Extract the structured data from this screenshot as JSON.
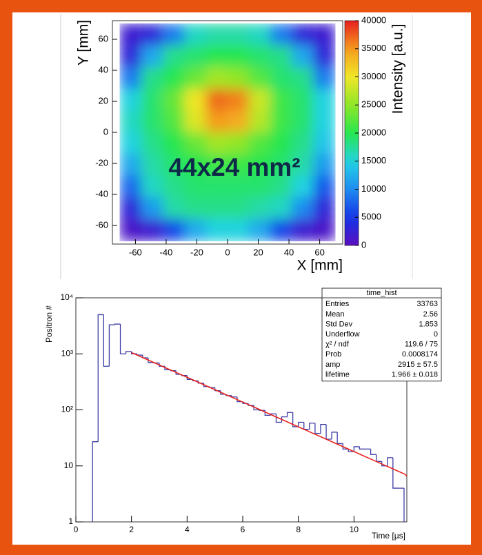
{
  "chart_data": [
    {
      "type": "heatmap",
      "xlabel": "X [mm]",
      "ylabel": "Y [mm]",
      "zlabel": "Intensity [a.u.]",
      "annotation": "44x24 mm²",
      "x": [
        -63,
        -49,
        -35,
        -21,
        -7,
        7,
        21,
        35,
        49,
        63
      ],
      "y": [
        63,
        49,
        35,
        21,
        7,
        -7,
        -21,
        -35,
        -49,
        -63
      ],
      "values": [
        [
          2000,
          3000,
          9000,
          16000,
          17000,
          17000,
          16000,
          9000,
          3000,
          2000
        ],
        [
          3000,
          12000,
          18000,
          19000,
          20000,
          20000,
          19000,
          18000,
          12000,
          3000
        ],
        [
          9000,
          18000,
          20000,
          23000,
          26000,
          25000,
          22000,
          19000,
          18000,
          9000
        ],
        [
          15000,
          19000,
          23000,
          30000,
          37000,
          36000,
          28000,
          21000,
          19000,
          15000
        ],
        [
          16000,
          19000,
          22000,
          29000,
          35000,
          34000,
          27000,
          21000,
          19000,
          15000
        ],
        [
          15000,
          18000,
          20000,
          23000,
          26000,
          25000,
          22000,
          20000,
          18000,
          14000
        ],
        [
          12000,
          17000,
          19000,
          20000,
          21000,
          21000,
          20000,
          19000,
          17000,
          11000
        ],
        [
          8000,
          16000,
          18000,
          19000,
          19000,
          19000,
          19000,
          18000,
          15000,
          7000
        ],
        [
          3000,
          11000,
          17000,
          18000,
          18000,
          18000,
          17000,
          16000,
          10000,
          3000
        ],
        [
          1000,
          2000,
          6000,
          12000,
          15000,
          15000,
          12000,
          6000,
          2000,
          1000
        ]
      ],
      "xlim": [
        -75,
        75
      ],
      "ylim": [
        -72,
        72
      ],
      "zlim": [
        0,
        40000
      ],
      "xticks": [
        -60,
        -40,
        -20,
        0,
        20,
        40,
        60
      ],
      "yticks": [
        -60,
        -40,
        -20,
        0,
        20,
        40,
        60
      ],
      "zticks": [
        0,
        5000,
        10000,
        15000,
        20000,
        25000,
        30000,
        35000,
        40000
      ]
    },
    {
      "type": "histogram",
      "xlabel": "Time [μs]",
      "ylabel": "Positron #",
      "color": "#3b3ba6",
      "log_y": true,
      "bins": [
        0.6,
        0.8,
        1.0,
        1.2,
        1.4,
        1.6,
        1.8,
        2.0,
        2.2,
        2.4,
        2.6,
        2.8,
        3.0,
        3.2,
        3.4,
        3.6,
        3.8,
        4.0,
        4.2,
        4.4,
        4.6,
        4.8,
        5.0,
        5.2,
        5.4,
        5.6,
        5.8,
        6.0,
        6.2,
        6.4,
        6.6,
        6.8,
        7.0,
        7.2,
        7.4,
        7.6,
        7.8,
        8.0,
        8.2,
        8.4,
        8.6,
        8.8,
        9.0,
        9.2,
        9.4,
        9.6,
        9.8,
        10.0,
        10.2,
        10.4,
        10.6,
        10.8,
        11.0,
        11.2,
        11.4,
        11.6,
        11.8
      ],
      "values": [
        27,
        5000,
        600,
        3300,
        3400,
        1000,
        1100,
        1002,
        950,
        850,
        700,
        690,
        600,
        520,
        500,
        430,
        410,
        350,
        330,
        300,
        260,
        250,
        220,
        190,
        180,
        170,
        140,
        130,
        120,
        100,
        98,
        80,
        85,
        60,
        75,
        90,
        50,
        60,
        45,
        58,
        38,
        55,
        30,
        40,
        25,
        20,
        18,
        22,
        20,
        20,
        16,
        12,
        10,
        14,
        4,
        4
      ],
      "fit": {
        "amp": 2915,
        "lifetime": 1.966,
        "xlim": [
          2,
          12
        ],
        "color": "#e8231e"
      },
      "xlim": [
        0,
        11.9
      ],
      "ylim": [
        1,
        10000
      ],
      "xticks": [
        0,
        2,
        4,
        6,
        8,
        10
      ],
      "yticks": [
        1,
        10,
        {
          "value": 100,
          "label": "10²"
        },
        {
          "value": 1000,
          "label": "10³"
        },
        {
          "value": 10000,
          "label": "10⁴"
        }
      ],
      "stats": {
        "title": "time_hist",
        "rows": [
          [
            "Entries",
            "33763"
          ],
          [
            "Mean",
            "2.56"
          ],
          [
            "Std Dev",
            "1.853"
          ],
          [
            "Underflow",
            "0"
          ],
          [
            "χ² / ndf",
            "119.6 / 75"
          ],
          [
            "Prob",
            "0.0008174"
          ],
          [
            "amp",
            "2915 ± 57.5"
          ],
          [
            "lifetime",
            "1.966 ± 0.018"
          ]
        ]
      }
    }
  ]
}
